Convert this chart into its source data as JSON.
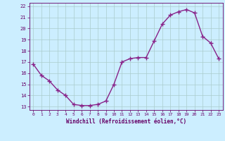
{
  "x": [
    0,
    1,
    2,
    3,
    4,
    5,
    6,
    7,
    8,
    9,
    10,
    11,
    12,
    13,
    14,
    15,
    16,
    17,
    18,
    19,
    20,
    21,
    22,
    23
  ],
  "y": [
    16.8,
    15.8,
    15.3,
    14.5,
    14.0,
    13.2,
    13.1,
    13.1,
    13.2,
    13.5,
    15.0,
    17.0,
    17.3,
    17.4,
    17.4,
    18.9,
    20.4,
    21.2,
    21.5,
    21.7,
    21.4,
    19.3,
    18.7,
    17.3
  ],
  "line_color": "#882288",
  "marker": "+",
  "marker_size": 4,
  "xlabel": "Windchill (Refroidissement éolien,°C)",
  "xlim_min": -0.5,
  "xlim_max": 23.5,
  "ylim_min": 12.7,
  "ylim_max": 22.3,
  "yticks": [
    13,
    14,
    15,
    16,
    17,
    18,
    19,
    20,
    21,
    22
  ],
  "xticks": [
    0,
    1,
    2,
    3,
    4,
    5,
    6,
    7,
    8,
    9,
    10,
    11,
    12,
    13,
    14,
    15,
    16,
    17,
    18,
    19,
    20,
    21,
    22,
    23
  ],
  "bg_color": "#cceeff",
  "grid_color": "#aacccc",
  "line_width": 1.0,
  "label_color": "#660066",
  "tick_color": "#660066",
  "font_name": "monospace"
}
